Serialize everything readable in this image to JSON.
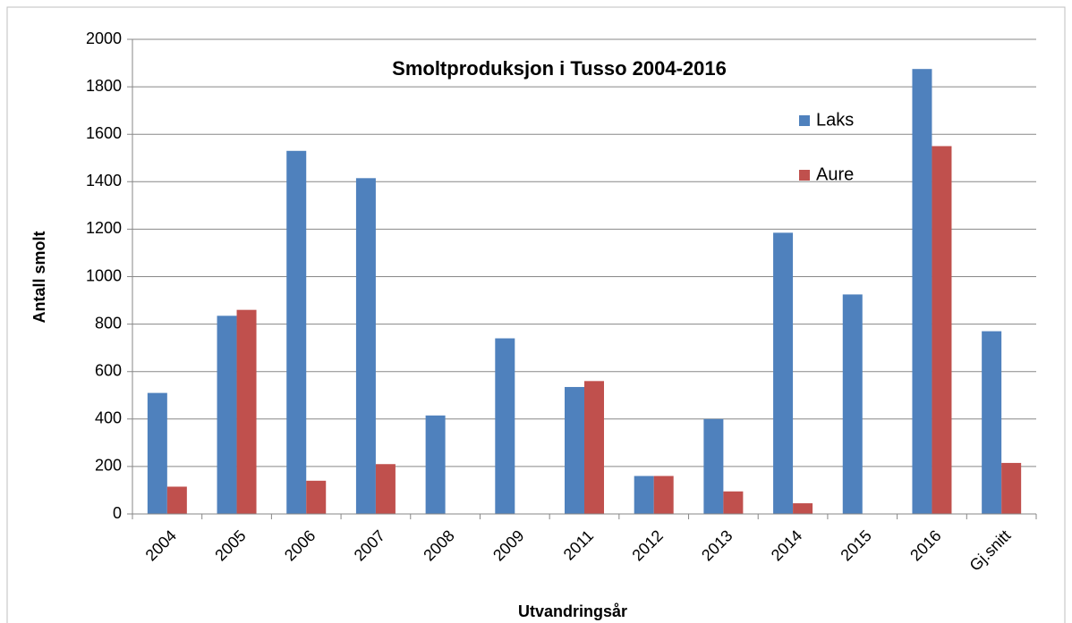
{
  "chart_data": {
    "type": "bar",
    "title": "Smoltproduksjon i Tusso 2004-2016",
    "x_label": "Utvandringsår",
    "y_label": "Antall smolt",
    "categories": [
      "2004",
      "2005",
      "2006",
      "2007",
      "2008",
      "2009",
      "2011",
      "2012",
      "2013",
      "2014",
      "2015",
      "2016",
      "Gj.snitt"
    ],
    "series": [
      {
        "name": "Laks",
        "color": "#4f81bd",
        "values": [
          510,
          835,
          1530,
          1415,
          415,
          740,
          535,
          160,
          400,
          1185,
          925,
          1875,
          770
        ]
      },
      {
        "name": "Aure",
        "color": "#c0504d",
        "values": [
          115,
          860,
          140,
          210,
          null,
          null,
          560,
          160,
          95,
          45,
          null,
          1550,
          215
        ]
      }
    ],
    "ylim": [
      0,
      2000
    ],
    "yticks": [
      0,
      200,
      400,
      600,
      800,
      1000,
      1200,
      1400,
      1600,
      1800,
      2000
    ],
    "grid": true
  }
}
